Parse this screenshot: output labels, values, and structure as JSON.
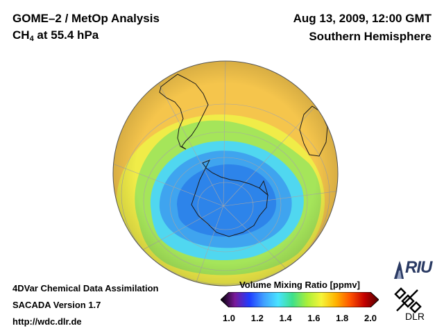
{
  "header": {
    "title_line1": "GOME–2 / MetOp Analysis",
    "title_line2_prefix": "CH",
    "title_line2_sub": "4",
    "title_line2_suffix": " at 55.4 hPa",
    "date": "Aug 13, 2009, 12:00 GMT",
    "region": "Southern Hemisphere"
  },
  "footer": {
    "line1": "4DVar Chemical Data Assimilation",
    "line2": "SACADA Version 1.7",
    "line3": "http://wdc.dlr.de"
  },
  "colorbar": {
    "title": "Volume Mixing Ratio [ppmv]",
    "ticks": [
      "1.0",
      "1.2",
      "1.4",
      "1.6",
      "1.8",
      "2.0"
    ],
    "colors": [
      "#000000",
      "#7a1a9a",
      "#1f3cff",
      "#3fa0ff",
      "#49e3ff",
      "#3ee08a",
      "#a8ef3a",
      "#f5f53a",
      "#ffb400",
      "#ff5400",
      "#c40000",
      "#500000"
    ]
  },
  "logos": {
    "riu": "RIU",
    "dlr": "DLR"
  },
  "map": {
    "projection": "orthographic-south-polar",
    "palette": {
      "outer": "#f5c54c",
      "yellow": "#f0ec48",
      "green": "#a5e55a",
      "cyan": "#50d7f0",
      "blue": "#3fa4ef",
      "deep_blue": "#2d84ea"
    }
  }
}
